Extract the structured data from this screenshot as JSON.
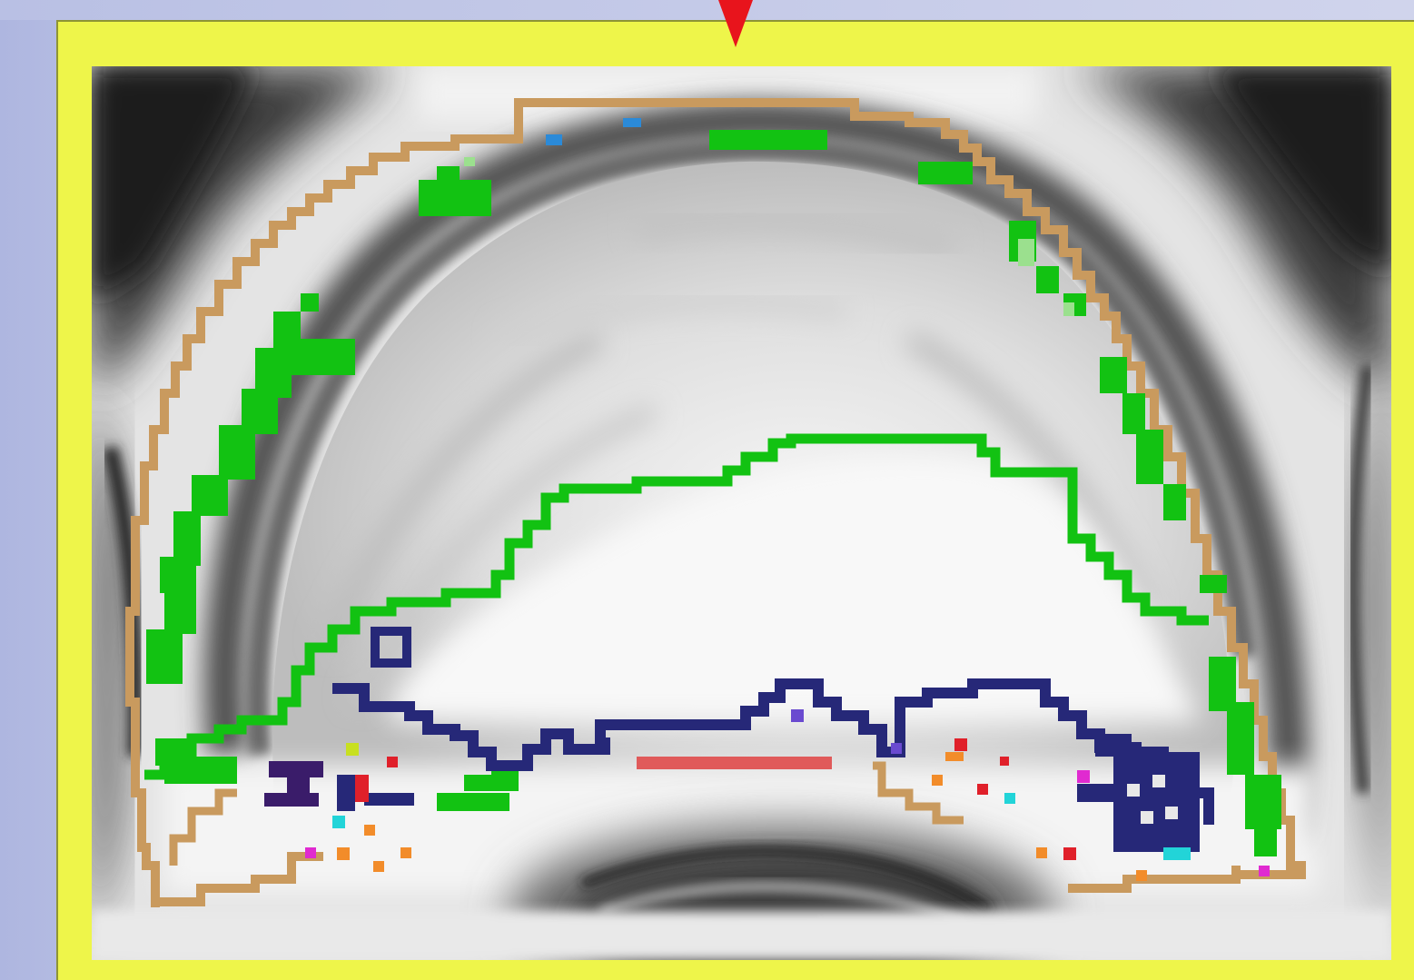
{
  "figure": {
    "frame_color": "#eef54a",
    "marker_color": "#e8141c",
    "marker_icon": "down-triangle-icon",
    "segmentation_colors": {
      "outer_boundary": "#c99a5e",
      "inner_boundary": "#12c212",
      "lower_boundary": "#262878",
      "midline_segment": "#e05a5a",
      "speckle_orange": "#f28c2a",
      "speckle_cyan": "#22d4d8",
      "speckle_magenta": "#e02ad0"
    }
  }
}
